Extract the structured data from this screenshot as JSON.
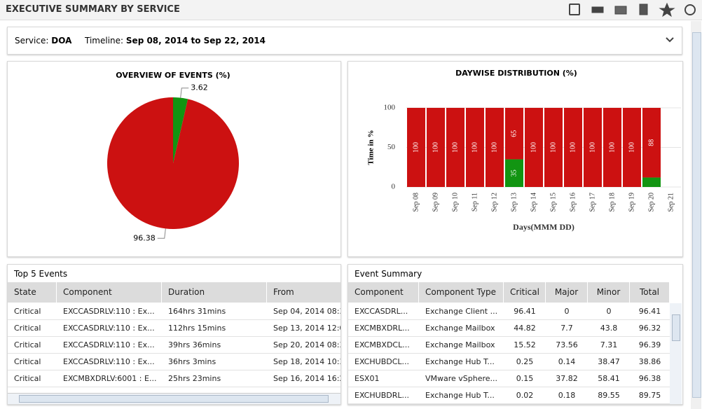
{
  "header": {
    "title": "EXECUTIVE SUMMARY BY SERVICE"
  },
  "filter": {
    "service_label": "Service:",
    "service": "DOA",
    "timeline_label": "Timeline:",
    "timeline": "Sep 08, 2014 to Sep 22, 2014"
  },
  "chart_data": [
    {
      "type": "pie",
      "title": "OVERVIEW OF EVENTS (%)",
      "values": [
        3.62,
        96.38
      ],
      "colors": [
        "#129512",
        "#cc1111"
      ]
    },
    {
      "type": "bar",
      "stacked": true,
      "title": "DAYWISE DISTRIBUTION (%)",
      "xlabel": "Days(MMM DD)",
      "ylabel": "Time in %",
      "categories": [
        "Sep 08",
        "Sep 09",
        "Sep 10",
        "Sep 11",
        "Sep 12",
        "Sep 13",
        "Sep 14",
        "Sep 15",
        "Sep 16",
        "Sep 17",
        "Sep 18",
        "Sep 19",
        "Sep 20",
        "Sep 21"
      ],
      "series": [
        {
          "color": "#129512",
          "values": [
            0,
            0,
            0,
            0,
            0,
            35,
            0,
            0,
            0,
            0,
            0,
            0,
            12,
            null
          ]
        },
        {
          "color": "#cc1111",
          "values": [
            100,
            100,
            100,
            100,
            100,
            65,
            100,
            100,
            100,
            100,
            100,
            100,
            88,
            null
          ]
        }
      ],
      "ylim": [
        0,
        100
      ],
      "yticks": [
        0,
        50,
        100
      ],
      "grid": true
    }
  ],
  "top_events": {
    "title": "Top 5 Events",
    "columns": [
      "State",
      "Component",
      "Duration",
      "From"
    ],
    "rows": [
      [
        "Critical",
        "EXCCASDRLV:110 : Ex...",
        "164hrs 31mins",
        "Sep 04, 2014 08:3"
      ],
      [
        "Critical",
        "EXCCASDRLV:110 : Ex...",
        "112hrs 15mins",
        "Sep 13, 2014 12:0"
      ],
      [
        "Critical",
        "EXCCASDRLV:110 : Ex...",
        "39hrs 36mins",
        "Sep 20, 2014 08:3"
      ],
      [
        "Critical",
        "EXCCASDRLV:110 : Ex...",
        "36hrs 3mins",
        "Sep 18, 2014 10:3"
      ],
      [
        "Critical",
        "EXCMBXDRLV:6001 : E...",
        "25hrs 23mins",
        "Sep 16, 2014 16:2"
      ]
    ]
  },
  "event_summary": {
    "title": "Event Summary",
    "columns": [
      "Component",
      "Component Type",
      "Critical",
      "Major",
      "Minor",
      "Total"
    ],
    "rows": [
      [
        "EXCCASDRL...",
        "Exchange Client ...",
        "96.41",
        "0",
        "0",
        "96.41"
      ],
      [
        "EXCMBXDRL...",
        "Exchange Mailbox",
        "44.82",
        "7.7",
        "43.8",
        "96.32"
      ],
      [
        "EXCMBXDCL...",
        "Exchange Mailbox",
        "15.52",
        "73.56",
        "7.31",
        "96.39"
      ],
      [
        "EXCHUBDCL...",
        "Exchange Hub T...",
        "0.25",
        "0.14",
        "38.47",
        "38.86"
      ],
      [
        "ESX01",
        "VMware vSphere...",
        "0.15",
        "37.82",
        "58.41",
        "96.38"
      ],
      [
        "EXCHUBDRL...",
        "Exchange Hub T...",
        "0.02",
        "0.18",
        "89.55",
        "89.75"
      ]
    ]
  }
}
